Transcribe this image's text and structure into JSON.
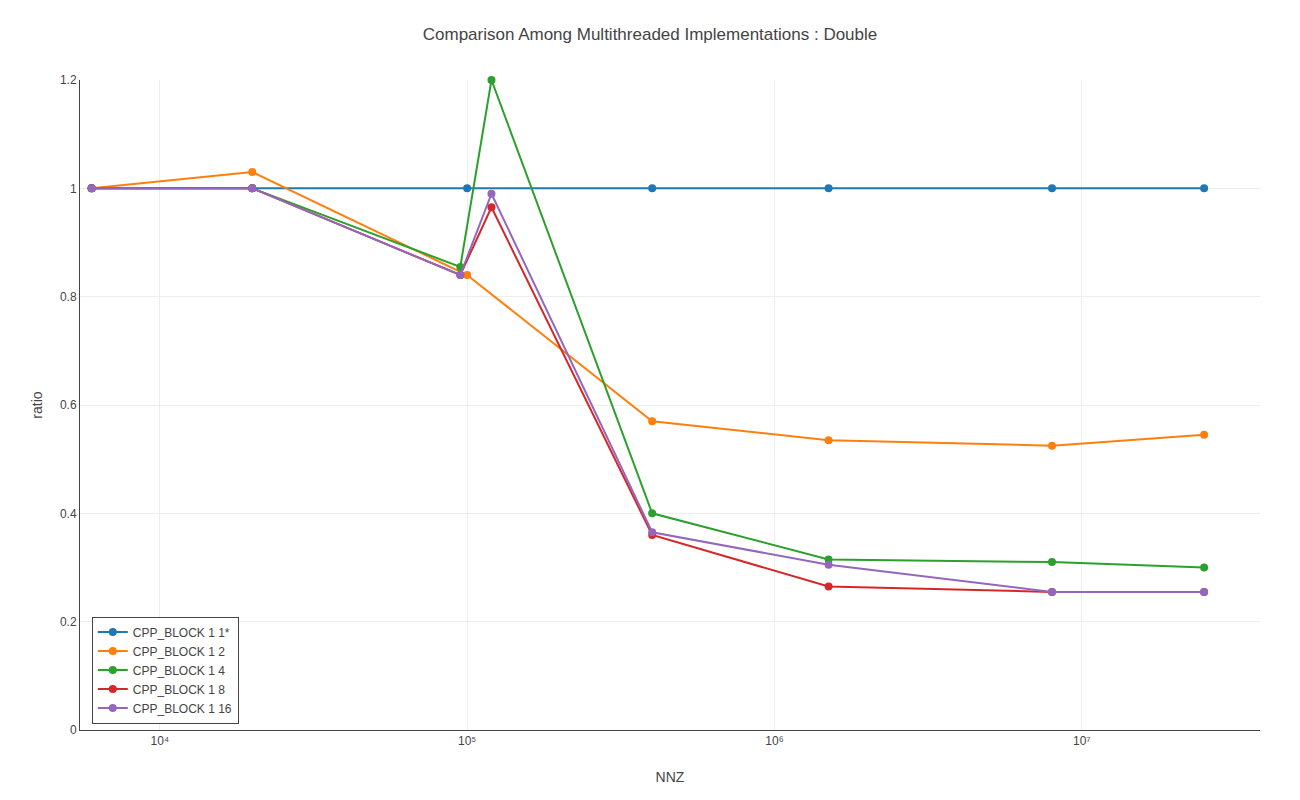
{
  "chart_data": {
    "type": "line",
    "title": "Comparison Among Multithreaded Implementations : Double",
    "x_label": "NNZ",
    "y_label": "ratio",
    "log": "x",
    "xlim": [
      5500,
      38000000
    ],
    "xticks": [
      {
        "value": 10000,
        "label": "10⁴"
      },
      {
        "value": 100000,
        "label": "10⁵"
      },
      {
        "value": 1000000,
        "label": "10⁶"
      },
      {
        "value": 10000000,
        "label": "10⁷"
      }
    ],
    "ylim": [
      0.0,
      1.2
    ],
    "yticks": [
      0.0,
      0.2,
      0.4,
      0.6,
      0.8,
      1.0,
      1.2
    ],
    "grid": true,
    "legend": "lower left",
    "marker": "circle",
    "series": [
      {
        "name": "CPP_BLOCK 1 1*",
        "color": "#1f77b4",
        "x": [
          6000,
          20000,
          100000,
          400000,
          1500000,
          8000000,
          25000000
        ],
        "values": [
          1.0,
          1.0,
          1.0,
          1.0,
          1.0,
          1.0,
          1.0
        ]
      },
      {
        "name": "CPP_BLOCK 1 2",
        "color": "#ff7f0e",
        "x": [
          6000,
          20000,
          100000,
          400000,
          1500000,
          8000000,
          25000000
        ],
        "values": [
          1.0,
          1.03,
          0.84,
          0.57,
          0.535,
          0.525,
          0.545
        ]
      },
      {
        "name": "CPP_BLOCK 1 4",
        "color": "#2ca02c",
        "x": [
          6000,
          20000,
          95000,
          120000,
          400000,
          1500000,
          8000000,
          25000000
        ],
        "values": [
          1.0,
          1.0,
          0.855,
          1.2,
          0.4,
          0.315,
          0.31,
          0.3
        ]
      },
      {
        "name": "CPP_BLOCK 1 8",
        "color": "#d62728",
        "x": [
          6000,
          20000,
          95000,
          120000,
          400000,
          1500000,
          8000000,
          25000000
        ],
        "values": [
          1.0,
          1.0,
          0.84,
          0.965,
          0.36,
          0.265,
          0.255,
          0.255
        ]
      },
      {
        "name": "CPP_BLOCK 1 16",
        "color": "#9467bd",
        "x": [
          6000,
          20000,
          95000,
          120000,
          400000,
          1500000,
          8000000,
          25000000
        ],
        "values": [
          1.0,
          1.0,
          0.84,
          0.99,
          0.365,
          0.305,
          0.255,
          0.255
        ]
      }
    ]
  }
}
